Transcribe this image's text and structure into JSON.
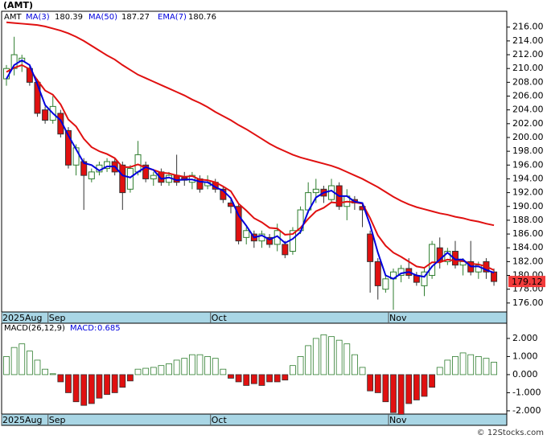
{
  "chart_data": {
    "type": "candlestick",
    "title": "(AMT)",
    "ticker": "AMT",
    "categories": [
      "2025Aug",
      null,
      null,
      null,
      null,
      null,
      "Sep",
      null,
      null,
      null,
      null,
      null,
      null,
      null,
      null,
      null,
      null,
      null,
      null,
      null,
      null,
      null,
      null,
      null,
      null,
      null,
      null,
      "Oct",
      null,
      null,
      null,
      null,
      null,
      null,
      null,
      null,
      null,
      null,
      null,
      null,
      null,
      null,
      null,
      null,
      null,
      null,
      null,
      null,
      null,
      null,
      "Nov",
      null,
      null,
      null,
      null,
      null,
      null,
      null,
      null,
      null,
      null,
      null,
      null,
      null
    ],
    "up_color": "#2e7d2e",
    "down_color": "#e01010",
    "open": [
      208.5,
      210,
      211,
      210,
      208,
      204,
      202.5,
      203.5,
      201,
      196,
      196.5,
      194,
      195,
      195.5,
      196.5,
      196,
      192.5,
      195,
      196,
      194,
      195,
      193.5,
      194.5,
      194.2,
      193.5,
      194,
      193,
      193.5,
      192.5,
      190.5,
      190,
      185.5,
      186,
      185,
      185.5,
      184.5,
      184.5,
      183.5,
      186.5,
      189.5,
      192,
      192.5,
      191,
      193,
      190,
      191,
      190,
      186,
      182,
      178,
      179.5,
      180,
      181,
      180,
      178.5,
      180,
      184,
      182,
      183.5,
      181.5,
      182,
      180.5,
      182,
      180.5
    ],
    "high": [
      210.5,
      214.6,
      212,
      210.5,
      208.5,
      204.5,
      206,
      204,
      201.5,
      199,
      197,
      195.5,
      196.5,
      197,
      197,
      196.5,
      196,
      199.5,
      196.5,
      195,
      195.5,
      195,
      197.5,
      195,
      195,
      194.5,
      194.5,
      194,
      193,
      191,
      190.5,
      187,
      186.5,
      186.5,
      186,
      187.5,
      185,
      187,
      190,
      193.5,
      194,
      193,
      194,
      193.5,
      192.5,
      191.5,
      190.5,
      186.5,
      182.5,
      180,
      181,
      181.5,
      182.5,
      180.5,
      181,
      185,
      185.5,
      184,
      185,
      182.5,
      185,
      182,
      182.5,
      181
    ],
    "low": [
      207.5,
      209,
      209.5,
      207.5,
      203,
      202,
      202,
      200,
      195.5,
      194.5,
      189.5,
      193.5,
      194.5,
      195,
      194.5,
      189.5,
      192,
      194.5,
      193.5,
      193,
      193,
      193,
      193,
      193,
      192.5,
      192,
      192.5,
      192,
      190.5,
      189,
      184.5,
      184.5,
      184,
      184,
      184,
      183.5,
      182.5,
      183,
      186,
      189,
      190.5,
      190.5,
      190.5,
      189.5,
      188,
      189.5,
      187,
      177.5,
      176.5,
      177.5,
      175,
      179,
      179.5,
      178.5,
      177,
      179.5,
      181,
      181.5,
      181,
      180,
      180,
      179.5,
      179.5,
      178.5
    ],
    "close": [
      210,
      212,
      211.5,
      208,
      203.5,
      202.5,
      204.5,
      200.5,
      196,
      198.5,
      194.5,
      195,
      196,
      196.5,
      195,
      192,
      195.5,
      197.5,
      194,
      194.5,
      193.5,
      194.5,
      193.5,
      193.8,
      194.5,
      192.5,
      193.5,
      192.5,
      191,
      190,
      185,
      186.5,
      185,
      186,
      184.5,
      186.5,
      183,
      186.5,
      189.5,
      192,
      192.5,
      191.5,
      193,
      190,
      191.5,
      190.5,
      189.5,
      182,
      178.5,
      179.5,
      180.5,
      181,
      180,
      179,
      180.5,
      184.5,
      182,
      183.5,
      181.5,
      182,
      180.5,
      181.5,
      180.5,
      179.12
    ],
    "series": [
      {
        "name": "MA(3)",
        "color": "#0000dd",
        "last": 180.39,
        "values": [
          208.5,
          210.5,
          211.2,
          210.5,
          207.7,
          204.7,
          203.5,
          202.5,
          200.3,
          198.3,
          196.3,
          196,
          195.2,
          195.8,
          195.8,
          194.5,
          194.2,
          195,
          195.7,
          195.3,
          194,
          194.2,
          193.8,
          193.9,
          193.9,
          193.6,
          193.5,
          192.8,
          192.3,
          191.2,
          188.7,
          187.2,
          185.5,
          185.8,
          185.2,
          185.7,
          184.7,
          185.3,
          186.3,
          189.3,
          191.3,
          192,
          192.3,
          191.5,
          191.5,
          190.7,
          190.5,
          187.3,
          183.3,
          180,
          179.5,
          180.3,
          180.5,
          180,
          179.8,
          181.3,
          182.3,
          183.3,
          182.3,
          182.3,
          181.3,
          181.3,
          180.8,
          180.39
        ]
      },
      {
        "name": "MA(50)",
        "color": "#e01010",
        "last": 187.27,
        "values": [
          216.7,
          216.6,
          216.5,
          216.4,
          216.3,
          216.1,
          215.8,
          215.5,
          215.1,
          214.6,
          214,
          213.3,
          212.6,
          211.9,
          211.3,
          210.5,
          209.8,
          209.1,
          208.6,
          208.1,
          207.6,
          207.1,
          206.6,
          206.1,
          205.5,
          205,
          204.4,
          203.7,
          203.1,
          202.5,
          201.8,
          201.2,
          200.5,
          199.8,
          199.1,
          198.5,
          198,
          197.5,
          197.1,
          196.8,
          196.5,
          196.2,
          195.9,
          195.5,
          195,
          194.5,
          194,
          193.4,
          192.8,
          192.1,
          191.4,
          190.8,
          190.3,
          189.9,
          189.6,
          189.3,
          189,
          188.8,
          188.5,
          188.3,
          188,
          187.8,
          187.5,
          187.27
        ]
      },
      {
        "name": "EMA(7)",
        "color": "#e01010",
        "last": 180.76,
        "values": [
          209.5,
          210.1,
          210.5,
          209.9,
          208.3,
          206.8,
          206.2,
          204.8,
          202.6,
          201.6,
          199.8,
          198.6,
          198,
          197.6,
          197,
          195.7,
          195.7,
          196.1,
          195.6,
          195.3,
          194.9,
          194.8,
          194.5,
          194.3,
          194.4,
          193.9,
          193.8,
          193.5,
          192.9,
          192.2,
          190.4,
          189.4,
          188.3,
          187.7,
          186.9,
          186.8,
          185.9,
          186,
          186.9,
          188.2,
          189.3,
          189.8,
          190.6,
          190.5,
          190.7,
          190.6,
          190.4,
          188.3,
          185.8,
          184.3,
          183.3,
          182.7,
          182,
          181.3,
          181.1,
          181.9,
          181.9,
          182.3,
          182.1,
          182.1,
          181.7,
          181.6,
          181.3,
          180.76
        ]
      }
    ],
    "ylim": [
      174.7,
      218.3
    ],
    "yticks": [
      {
        "value": 176,
        "label": "176.00"
      },
      {
        "value": 178,
        "label": "178.00"
      },
      {
        "value": 180,
        "label": "180.00"
      },
      {
        "value": 182,
        "label": "182.00"
      },
      {
        "value": 184,
        "label": "184.00"
      },
      {
        "value": 186,
        "label": "186.00"
      },
      {
        "value": 188,
        "label": "188.00"
      },
      {
        "value": 190,
        "label": "190.00"
      },
      {
        "value": 192,
        "label": "192.00"
      },
      {
        "value": 194,
        "label": "194.00"
      },
      {
        "value": 196,
        "label": "196.00"
      },
      {
        "value": 198,
        "label": "198.00"
      },
      {
        "value": 200,
        "label": "200.00"
      },
      {
        "value": 202,
        "label": "202.00"
      },
      {
        "value": 204,
        "label": "204.00"
      },
      {
        "value": 206,
        "label": "206.00"
      },
      {
        "value": 208,
        "label": "208.00"
      },
      {
        "value": 210,
        "label": "210.00"
      },
      {
        "value": 212,
        "label": "212.00"
      },
      {
        "value": 214,
        "label": "214.00"
      },
      {
        "value": 216,
        "label": "216.00"
      }
    ],
    "macd": {
      "title": "MACD(26,12,9)",
      "value_name": "MACD:",
      "value": 0.685,
      "histogram": [
        1.0,
        1.5,
        1.7,
        1.3,
        0.8,
        0.3,
        0.05,
        -0.4,
        -1.0,
        -1.5,
        -1.7,
        -1.6,
        -1.3,
        -1.1,
        -1.0,
        -0.7,
        -0.35,
        0.3,
        0.35,
        0.4,
        0.5,
        0.6,
        0.8,
        0.9,
        1.1,
        1.1,
        1.0,
        0.9,
        0.3,
        -0.2,
        -0.4,
        -0.6,
        -0.5,
        -0.6,
        -0.4,
        -0.4,
        -0.3,
        0.5,
        1.0,
        1.6,
        2.0,
        2.2,
        2.1,
        1.9,
        1.7,
        1.1,
        0.4,
        -0.9,
        -1.0,
        -1.5,
        -2.1,
        -2.2,
        -1.6,
        -1.4,
        -1.2,
        -0.7,
        0.4,
        0.8,
        1.0,
        1.2,
        1.1,
        1.0,
        0.9,
        0.685
      ],
      "ylim": [
        -2.18,
        2.84
      ],
      "yticks": [
        {
          "value": 2,
          "label": "2.000"
        },
        {
          "value": 1,
          "label": "1.000"
        },
        {
          "value": 0,
          "label": "0.000"
        },
        {
          "value": -1,
          "label": "-1.000"
        },
        {
          "value": -2,
          "label": "-2.000"
        }
      ]
    },
    "copyright": "© 12Stocks.com"
  }
}
